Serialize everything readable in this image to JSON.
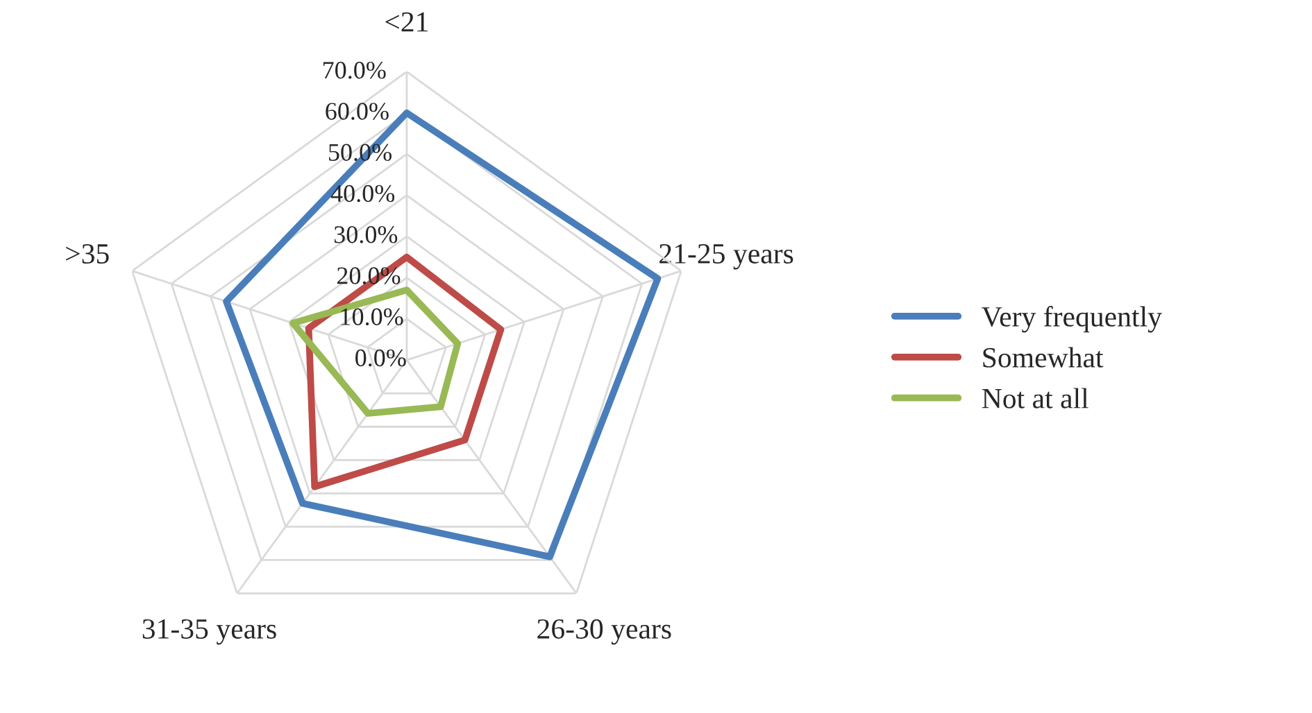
{
  "chart_data": {
    "type": "radar",
    "categories": [
      "<21",
      "21-25 years",
      "26-30 years",
      "31-35 years",
      ">35"
    ],
    "series": [
      {
        "name": "Very frequently",
        "color": "#4a7ebb",
        "values": [
          60,
          64,
          59,
          43,
          46
        ]
      },
      {
        "name": "Somewhat",
        "color": "#be4b48",
        "values": [
          25,
          24,
          24,
          38,
          25
        ]
      },
      {
        "name": "Not at all",
        "color": "#98b954",
        "values": [
          17,
          13,
          14,
          16,
          29
        ]
      }
    ],
    "ylim": [
      0,
      70
    ],
    "yticks": [
      {
        "value": 0,
        "label": "0.0%"
      },
      {
        "value": 10,
        "label": "10.0%"
      },
      {
        "value": 20,
        "label": "20.0%"
      },
      {
        "value": 30,
        "label": "30.0%"
      },
      {
        "value": 40,
        "label": "40.0%"
      },
      {
        "value": 50,
        "label": "50.0%"
      },
      {
        "value": 60,
        "label": "60.0%"
      },
      {
        "value": 70,
        "label": "70.0%"
      }
    ],
    "grid": true,
    "legend": "right",
    "marker": "none",
    "line_style": "solid"
  }
}
